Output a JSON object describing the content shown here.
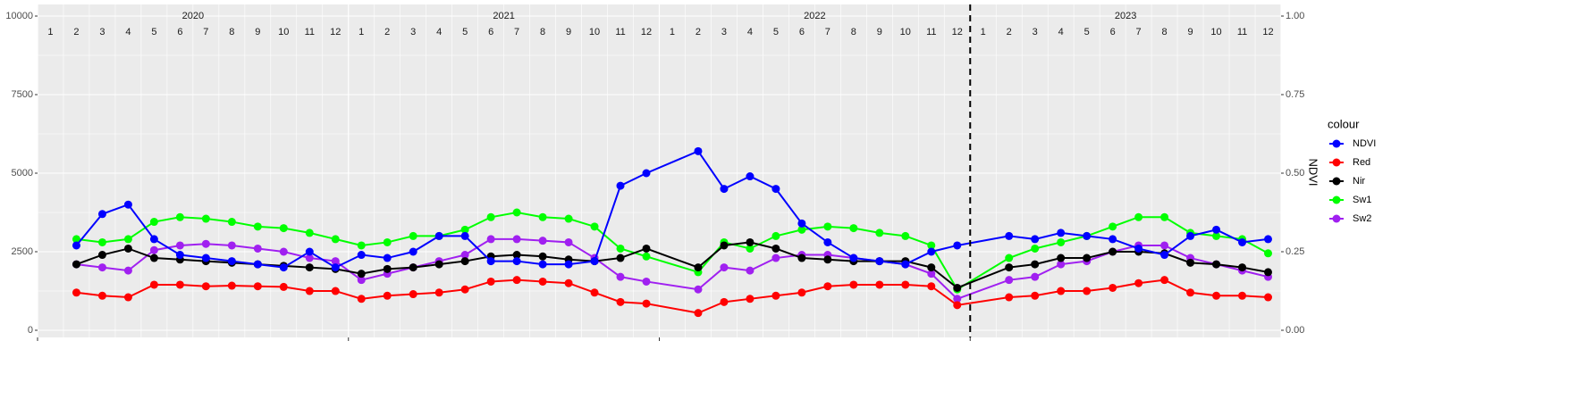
{
  "chart_data": {
    "type": "line",
    "years": [
      "2020",
      "2021",
      "2022",
      "2023"
    ],
    "months": [
      "1",
      "2",
      "3",
      "4",
      "5",
      "6",
      "7",
      "8",
      "9",
      "10",
      "11",
      "12"
    ],
    "x": [
      "2020-02",
      "2020-03",
      "2020-04",
      "2020-05",
      "2020-06",
      "2020-07",
      "2020-08",
      "2020-09",
      "2020-10",
      "2020-11",
      "2020-12",
      "2021-01",
      "2021-02",
      "2021-03",
      "2021-04",
      "2021-05",
      "2021-06",
      "2021-07",
      "2021-08",
      "2021-09",
      "2021-10",
      "2021-11",
      "2021-12",
      "2022-02",
      "2022-03",
      "2022-04",
      "2022-05",
      "2022-06",
      "2022-07",
      "2022-08",
      "2022-09",
      "2022-10",
      "2022-11",
      "2022-12",
      "2023-02",
      "2023-03",
      "2023-04",
      "2023-05",
      "2023-06",
      "2023-07",
      "2023-08",
      "2023-09",
      "2023-10",
      "2023-11",
      "2023-12"
    ],
    "series": [
      {
        "name": "NDVI",
        "color": "#0000ff",
        "axis": "y2",
        "values": [
          0.27,
          0.37,
          0.4,
          0.29,
          0.24,
          0.23,
          0.22,
          0.21,
          0.2,
          0.25,
          0.2,
          0.24,
          0.23,
          0.25,
          0.3,
          0.3,
          0.22,
          0.22,
          0.21,
          0.21,
          0.22,
          0.46,
          0.5,
          0.57,
          0.45,
          0.49,
          0.45,
          0.34,
          0.28,
          0.23,
          0.22,
          0.21,
          0.25,
          0.27,
          0.3,
          0.29,
          0.31,
          0.3,
          0.29,
          0.26,
          0.24,
          0.3,
          0.32,
          0.28,
          0.29
        ]
      },
      {
        "name": "Red",
        "color": "#ff0000",
        "values": [
          1200,
          1100,
          1050,
          1450,
          1450,
          1400,
          1420,
          1400,
          1380,
          1250,
          1250,
          1000,
          1100,
          1150,
          1200,
          1300,
          1550,
          1600,
          1550,
          1500,
          1200,
          900,
          850,
          550,
          900,
          1000,
          1100,
          1200,
          1400,
          1450,
          1450,
          1450,
          1400,
          800,
          1050,
          1100,
          1250,
          1250,
          1350,
          1500,
          1600,
          1200,
          1100,
          1100,
          1050
        ]
      },
      {
        "name": "Nir",
        "color": "#000000",
        "values": [
          2100,
          2400,
          2600,
          2300,
          2250,
          2200,
          2150,
          2100,
          2050,
          2000,
          1950,
          1800,
          1950,
          2000,
          2100,
          2200,
          2350,
          2400,
          2350,
          2250,
          2200,
          2300,
          2600,
          2000,
          2700,
          2800,
          2600,
          2300,
          2250,
          2200,
          2200,
          2200,
          2000,
          1350,
          2000,
          2100,
          2300,
          2300,
          2500,
          2500,
          2450,
          2150,
          2100,
          2000,
          1850
        ]
      },
      {
        "name": "Sw1",
        "color": "#00ff00",
        "values": [
          2900,
          2800,
          2900,
          3450,
          3600,
          3550,
          3450,
          3300,
          3250,
          3100,
          2900,
          2700,
          2800,
          3000,
          3000,
          3200,
          3600,
          3750,
          3600,
          3550,
          3300,
          2600,
          2350,
          1850,
          2800,
          2600,
          3000,
          3200,
          3300,
          3250,
          3100,
          3000,
          2700,
          1300,
          2300,
          2600,
          2800,
          3000,
          3300,
          3600,
          3600,
          3100,
          3000,
          2900,
          2450
        ]
      },
      {
        "name": "Sw2",
        "color": "#a020f0",
        "values": [
          2100,
          2000,
          1900,
          2550,
          2700,
          2750,
          2700,
          2600,
          2500,
          2300,
          2200,
          1600,
          1800,
          2000,
          2200,
          2400,
          2900,
          2900,
          2850,
          2800,
          2300,
          1700,
          1550,
          1300,
          2000,
          1900,
          2300,
          2400,
          2400,
          2300,
          2200,
          2100,
          1800,
          1000,
          1600,
          1700,
          2100,
          2200,
          2500,
          2700,
          2700,
          2300,
          2100,
          1900,
          1700
        ]
      }
    ],
    "vline": "2023-01",
    "ylim": [
      -227,
      10369
    ],
    "yticks": [
      0,
      2500,
      5000,
      7500,
      10000
    ],
    "y2label": "NDVI",
    "y2lim": [
      -0.0227,
      1.0369
    ],
    "y2ticks": [
      {
        "value": 0,
        "label": "0.00"
      },
      {
        "value": 0.25,
        "label": "0.25"
      },
      {
        "value": 0.5,
        "label": "0.50"
      },
      {
        "value": 0.75,
        "label": "0.75"
      },
      {
        "value": 1,
        "label": "1.00"
      }
    ],
    "legend_title": "colour",
    "legend": "right",
    "grid": true
  }
}
